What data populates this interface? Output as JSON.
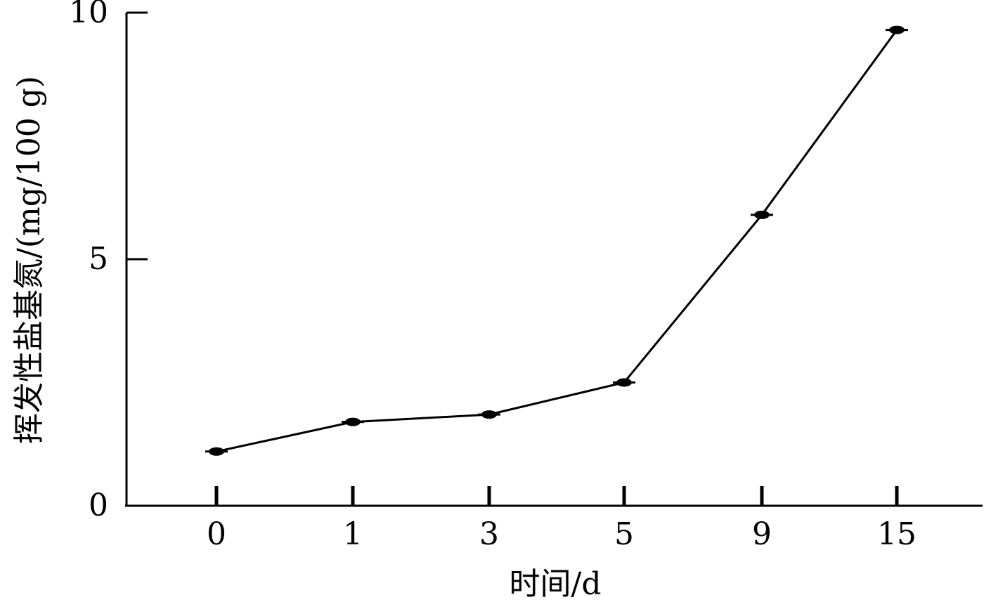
{
  "chart_data": {
    "type": "line",
    "title": "",
    "xlabel": "时间/d",
    "ylabel": "挥发性盐基氮/(mg/100 g)",
    "categories": [
      "0",
      "1",
      "3",
      "5",
      "9",
      "15"
    ],
    "series": [
      {
        "values": [
          1.1,
          1.7,
          1.85,
          2.5,
          5.9,
          9.65
        ]
      }
    ],
    "ylim": [
      0,
      10
    ],
    "yticks": [
      "0",
      "5",
      "10"
    ],
    "grid": false,
    "legend": "none",
    "colors": {
      "line": "#000000",
      "axis": "#000000"
    }
  }
}
